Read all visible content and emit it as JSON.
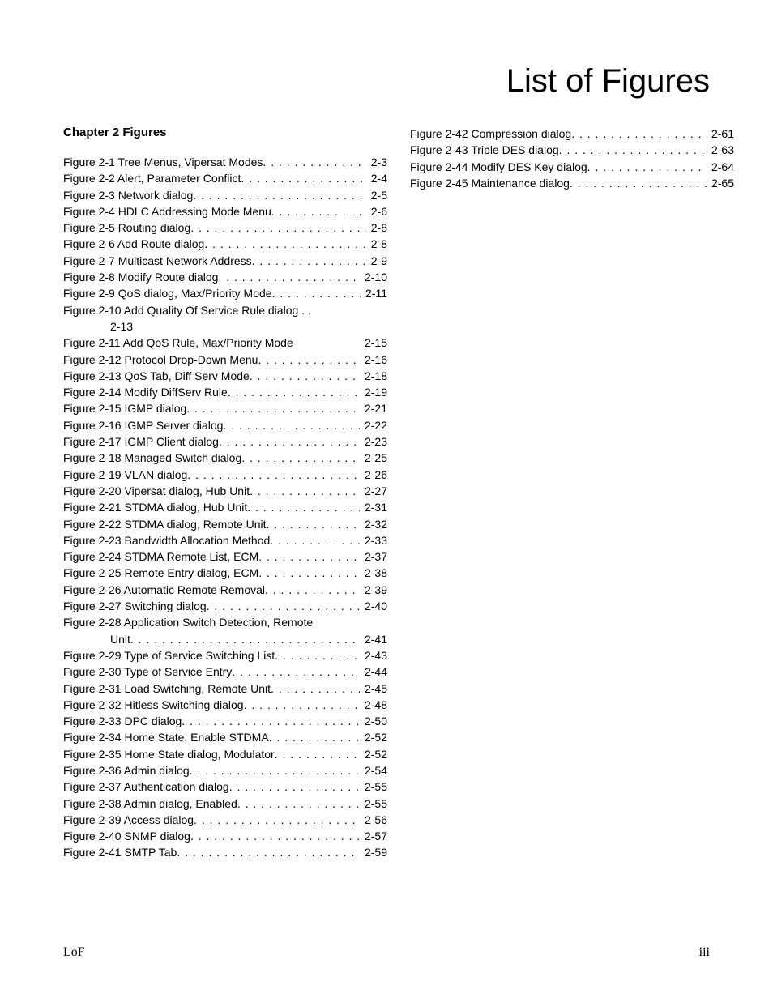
{
  "title": "List of Figures",
  "heading": "Chapter 2 Figures",
  "footer": {
    "left": "LoF",
    "right": "iii"
  },
  "fontSizes": {
    "title": 40,
    "heading": 15,
    "entry": 14,
    "footer": 16
  },
  "colors": {
    "text": "#000000",
    "background": "#ffffff"
  },
  "col1": [
    {
      "label": "Figure 2-1 Tree Menus, Vipersat Modes",
      "page": "2-3"
    },
    {
      "label": "Figure 2-2 Alert, Parameter Conflict",
      "page": "2-4"
    },
    {
      "label": "Figure 2-3 Network dialog",
      "page": "2-5"
    },
    {
      "label": "Figure 2-4 HDLC Addressing Mode Menu",
      "page": "2-6"
    },
    {
      "label": "Figure 2-5 Routing dialog",
      "page": "2-8"
    },
    {
      "label": "Figure 2-6 Add Route dialog",
      "page": "2-8"
    },
    {
      "label": "Figure 2-7 Multicast Network Address",
      "page": "2-9"
    },
    {
      "label": "Figure 2-8 Modify Route dialog",
      "page": "2-10"
    },
    {
      "label": "Figure 2-9 QoS dialog, Max/Priority Mode",
      "page": "2-11"
    },
    {
      "label": "Figure 2-10 Add Quality Of Service Rule dialog . .",
      "page": "",
      "nodots": true
    },
    {
      "label": "2-13",
      "page": "",
      "indent": true,
      "nodots": true
    },
    {
      "label": "Figure 2-11 Add QoS Rule, Max/Priority Mode",
      "page": "2-15",
      "nodots": true
    },
    {
      "label": "Figure 2-12 Protocol Drop-Down Menu",
      "page": "2-16"
    },
    {
      "label": "Figure 2-13 QoS Tab, Diff Serv Mode",
      "page": "2-18"
    },
    {
      "label": "Figure 2-14 Modify DiffServ Rule",
      "page": "2-19"
    },
    {
      "label": "Figure 2-15 IGMP dialog",
      "page": "2-21"
    },
    {
      "label": "Figure 2-16 IGMP Server dialog",
      "page": "2-22"
    },
    {
      "label": "Figure 2-17 IGMP Client dialog",
      "page": "2-23"
    },
    {
      "label": "Figure 2-18 Managed Switch dialog",
      "page": "2-25"
    },
    {
      "label": "Figure 2-19 VLAN dialog",
      "page": "2-26"
    },
    {
      "label": "Figure 2-20 Vipersat dialog, Hub Unit",
      "page": "2-27"
    },
    {
      "label": "Figure 2-21 STDMA dialog, Hub Unit",
      "page": "2-31"
    },
    {
      "label": "Figure 2-22 STDMA dialog, Remote Unit",
      "page": "2-32"
    },
    {
      "label": "Figure 2-23 Bandwidth Allocation Method",
      "page": "2-33"
    },
    {
      "label": "Figure 2-24 STDMA Remote List, ECM",
      "page": "2-37"
    },
    {
      "label": "Figure 2-25 Remote Entry dialog, ECM",
      "page": "2-38"
    },
    {
      "label": "Figure 2-26 Automatic Remote Removal",
      "page": "2-39"
    },
    {
      "label": "Figure 2-27 Switching dialog",
      "page": "2-40"
    },
    {
      "label": "Figure 2-28 Application Switch Detection, Remote",
      "page": "",
      "nodots": true
    },
    {
      "label": "Unit",
      "page": "2-41",
      "indent": true
    },
    {
      "label": "Figure 2-29 Type of Service Switching List",
      "page": "2-43"
    },
    {
      "label": "Figure 2-30 Type of Service Entry",
      "page": "2-44"
    },
    {
      "label": "Figure 2-31 Load Switching, Remote Unit",
      "page": "2-45"
    },
    {
      "label": "Figure 2-32 Hitless Switching dialog",
      "page": "2-48"
    },
    {
      "label": "Figure 2-33 DPC dialog",
      "page": "2-50"
    },
    {
      "label": "Figure 2-34 Home State, Enable STDMA",
      "page": "2-52"
    },
    {
      "label": "Figure 2-35 Home State dialog, Modulator",
      "page": "2-52"
    },
    {
      "label": "Figure 2-36 Admin dialog",
      "page": "2-54"
    },
    {
      "label": "Figure 2-37 Authentication dialog",
      "page": "2-55"
    },
    {
      "label": "Figure 2-38 Admin dialog, Enabled",
      "page": "2-55"
    },
    {
      "label": "Figure 2-39 Access dialog",
      "page": "2-56"
    },
    {
      "label": "Figure 2-40 SNMP dialog",
      "page": "2-57"
    },
    {
      "label": "Figure 2-41 SMTP Tab",
      "page": "2-59"
    }
  ],
  "col2": [
    {
      "label": "Figure 2-42 Compression dialog",
      "page": "2-61"
    },
    {
      "label": "Figure 2-43 Triple DES dialog",
      "page": "2-63"
    },
    {
      "label": "Figure 2-44 Modify DES Key dialog",
      "page": "2-64"
    },
    {
      "label": "Figure 2-45 Maintenance dialog",
      "page": "2-65"
    }
  ]
}
